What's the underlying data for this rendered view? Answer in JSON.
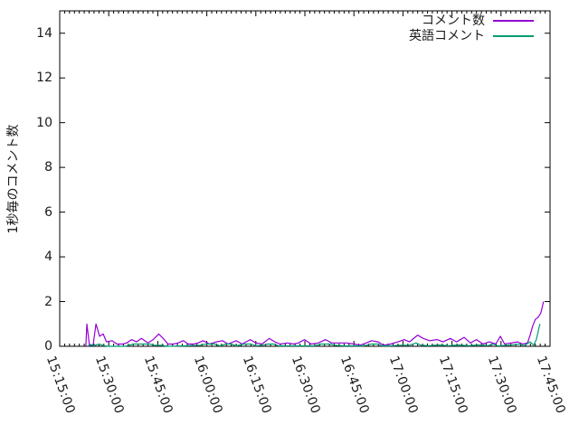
{
  "figure": {
    "background": "#ffffff",
    "border_color": "#000000",
    "text_color": "#1a1a1a"
  },
  "chart_data": {
    "type": "line",
    "ylabel": "1秒毎のコメント数",
    "xlabel": "",
    "ylim": [
      0,
      15
    ],
    "y_ticks": [
      0,
      2,
      4,
      6,
      8,
      10,
      12,
      14
    ],
    "x_unit": "minutes since 15:15:00",
    "xlim_minutes": [
      0,
      150
    ],
    "x_ticks": [
      {
        "minute": 0,
        "label": "15:15:00"
      },
      {
        "minute": 15,
        "label": "15:30:00"
      },
      {
        "minute": 30,
        "label": "15:45:00"
      },
      {
        "minute": 45,
        "label": "16:00:00"
      },
      {
        "minute": 60,
        "label": "16:15:00"
      },
      {
        "minute": 75,
        "label": "16:30:00"
      },
      {
        "minute": 90,
        "label": "16:45:00"
      },
      {
        "minute": 105,
        "label": "17:00:00"
      },
      {
        "minute": 120,
        "label": "17:15:00"
      },
      {
        "minute": 135,
        "label": "17:30:00"
      },
      {
        "minute": 150,
        "label": "17:45:00"
      }
    ],
    "minor_x_step_minutes": 1.5,
    "grid": false,
    "legend_position": "top-right-inside",
    "series": [
      {
        "name": "コメント数",
        "color": "#9400d3",
        "points": [
          [
            8,
            0
          ],
          [
            8.3,
            1
          ],
          [
            9.1,
            0.05
          ],
          [
            10.2,
            0.05
          ],
          [
            11.1,
            1
          ],
          [
            12.2,
            0.45
          ],
          [
            13.3,
            0.55
          ],
          [
            14.3,
            0.2
          ],
          [
            16,
            0.25
          ],
          [
            17.5,
            0.1
          ],
          [
            19.3,
            0.1
          ],
          [
            20.5,
            0.15
          ],
          [
            22,
            0.3
          ],
          [
            23.5,
            0.2
          ],
          [
            25,
            0.35
          ],
          [
            27,
            0.15
          ],
          [
            28.6,
            0.3
          ],
          [
            30.3,
            0.55
          ],
          [
            32,
            0.3
          ],
          [
            33.1,
            0.1
          ],
          [
            34.8,
            0.1
          ],
          [
            36.2,
            0.15
          ],
          [
            37.8,
            0.25
          ],
          [
            39.3,
            0.1
          ],
          [
            41,
            0.1
          ],
          [
            42.3,
            0.15
          ],
          [
            43.9,
            0.25
          ],
          [
            45.8,
            0.1
          ],
          [
            48,
            0.2
          ],
          [
            49.8,
            0.25
          ],
          [
            51.5,
            0.1
          ],
          [
            54,
            0.25
          ],
          [
            55.8,
            0.1
          ],
          [
            58.3,
            0.3
          ],
          [
            60,
            0.15
          ],
          [
            61.9,
            0.1
          ],
          [
            64.1,
            0.35
          ],
          [
            65.8,
            0.2
          ],
          [
            67.4,
            0.1
          ],
          [
            69.7,
            0.15
          ],
          [
            71.6,
            0.1
          ],
          [
            73,
            0.15
          ],
          [
            74.9,
            0.3
          ],
          [
            76.9,
            0.1
          ],
          [
            79.1,
            0.15
          ],
          [
            81.3,
            0.3
          ],
          [
            83.2,
            0.15
          ],
          [
            85.4,
            0.15
          ],
          [
            87.7,
            0.15
          ],
          [
            90.2,
            0.1
          ],
          [
            91.8,
            0.05
          ],
          [
            93.8,
            0.15
          ],
          [
            95.4,
            0.25
          ],
          [
            97.4,
            0.2
          ],
          [
            99,
            0.05
          ],
          [
            101.2,
            0.1
          ],
          [
            103.5,
            0.2
          ],
          [
            105.4,
            0.3
          ],
          [
            107,
            0.2
          ],
          [
            109.5,
            0.5
          ],
          [
            111.2,
            0.35
          ],
          [
            113.2,
            0.25
          ],
          [
            115.4,
            0.3
          ],
          [
            117.3,
            0.2
          ],
          [
            119.5,
            0.35
          ],
          [
            121.4,
            0.2
          ],
          [
            123.7,
            0.4
          ],
          [
            125.6,
            0.15
          ],
          [
            127.5,
            0.3
          ],
          [
            129.5,
            0.1
          ],
          [
            131.4,
            0.2
          ],
          [
            133.4,
            0.1
          ],
          [
            134.8,
            0.45
          ],
          [
            136.1,
            0.1
          ],
          [
            138.1,
            0.15
          ],
          [
            140,
            0.2
          ],
          [
            141.7,
            0.1
          ],
          [
            143.1,
            0.15
          ],
          [
            143.9,
            0.5
          ],
          [
            144.7,
            0.9
          ],
          [
            145.5,
            1.2
          ],
          [
            146.4,
            1.3
          ],
          [
            147.2,
            1.5
          ],
          [
            148,
            2
          ]
        ]
      },
      {
        "name": "英語コメント",
        "color": "#009e73",
        "points": [
          [
            8.5,
            0
          ],
          [
            9.5,
            0.08
          ],
          [
            10.5,
            0.03
          ],
          [
            11.5,
            0.08
          ],
          [
            12.5,
            0.08
          ],
          [
            13.5,
            0.03
          ],
          [
            15,
            0
          ],
          [
            20,
            0
          ],
          [
            22.5,
            0.1
          ],
          [
            25,
            0.1
          ],
          [
            27.5,
            0.1
          ],
          [
            29,
            0.05
          ],
          [
            31,
            0.05
          ],
          [
            33,
            0
          ],
          [
            38,
            0.02
          ],
          [
            43,
            0.05
          ],
          [
            44.7,
            0.1
          ],
          [
            47.5,
            0.1
          ],
          [
            49,
            0.02
          ],
          [
            50.8,
            0.1
          ],
          [
            52.5,
            0.1
          ],
          [
            54,
            0.02
          ],
          [
            56.4,
            0.1
          ],
          [
            58.6,
            0.1
          ],
          [
            60,
            0.02
          ],
          [
            62,
            0.05
          ],
          [
            63.7,
            0.1
          ],
          [
            65.4,
            0.1
          ],
          [
            67,
            0.02
          ],
          [
            70,
            0.02
          ],
          [
            74,
            0.02
          ],
          [
            78,
            0.02
          ],
          [
            79.9,
            0.1
          ],
          [
            82.7,
            0.1
          ],
          [
            84,
            0.05
          ],
          [
            87,
            0.02
          ],
          [
            90,
            0.02
          ],
          [
            93,
            0.02
          ],
          [
            95.5,
            0.1
          ],
          [
            97.5,
            0.1
          ],
          [
            98.5,
            0.02
          ],
          [
            101,
            0.02
          ],
          [
            104,
            0.05
          ],
          [
            107,
            0.05
          ],
          [
            109,
            0.15
          ],
          [
            110.5,
            0.05
          ],
          [
            113,
            0.03
          ],
          [
            116,
            0.06
          ],
          [
            119,
            0.03
          ],
          [
            122,
            0.06
          ],
          [
            125,
            0.03
          ],
          [
            128,
            0.06
          ],
          [
            131,
            0.03
          ],
          [
            132.6,
            0.1
          ],
          [
            134,
            0.02
          ],
          [
            137,
            0.05
          ],
          [
            140.8,
            0.1
          ],
          [
            142,
            0.02
          ],
          [
            143.9,
            0.2
          ],
          [
            145,
            0.05
          ],
          [
            145.8,
            0.3
          ],
          [
            146.9,
            1
          ]
        ]
      }
    ]
  }
}
